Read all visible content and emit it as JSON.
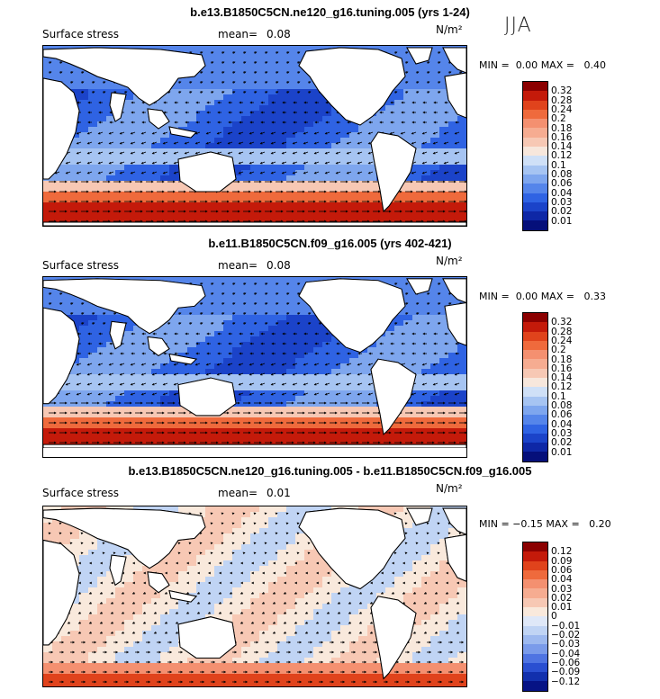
{
  "season": "JJA",
  "colors": {
    "ocean_deep_blue": "#0b2fb8",
    "ocean_mid_blue": "#3a6ae6",
    "ocean_light_blue": "#9fc3f2",
    "near_zero": "#f6f0ea",
    "warm_light": "#f3b29a",
    "warm_strong": "#dd4a28",
    "warm_dark": "#a01208",
    "land": "#ffffff"
  },
  "panels": [
    {
      "title": "b.e13.B1850C5CN.ne120_g16.tuning.005 (yrs 1-24)",
      "variable": "Surface stress",
      "mean_label": "mean=",
      "mean_value": "0.08",
      "units_label": "N/m²",
      "min_label": "MIN =",
      "min_value": "0.00",
      "max_label": "MAX =",
      "max_value": "0.40",
      "colorbar": {
        "levels": [
          "0.32",
          "0.28",
          "0.24",
          "0.2",
          "0.18",
          "0.16",
          "0.14",
          "0.12",
          "0.1",
          "0.08",
          "0.06",
          "0.04",
          "0.03",
          "0.02",
          "0.01"
        ],
        "colors": [
          "#8b0000",
          "#c41a0a",
          "#e0431c",
          "#ef6a3c",
          "#f49070",
          "#f6ac91",
          "#f7c8b4",
          "#f7e7dc",
          "#cfe0f7",
          "#a6c4f2",
          "#7ea6ee",
          "#5585ea",
          "#2f63e3",
          "#1b43c9",
          "#0e27a6",
          "#050f7a"
        ]
      },
      "field": "absolute"
    },
    {
      "title": "b.e11.B1850C5CN.f09_g16.005 (yrs 402-421)",
      "variable": "Surface stress",
      "mean_label": "mean=",
      "mean_value": "0.08",
      "units_label": "N/m²",
      "min_label": "MIN =",
      "min_value": "0.00",
      "max_label": "MAX =",
      "max_value": "0.33",
      "colorbar": {
        "levels": [
          "0.32",
          "0.28",
          "0.24",
          "0.2",
          "0.18",
          "0.16",
          "0.14",
          "0.12",
          "0.1",
          "0.08",
          "0.06",
          "0.04",
          "0.03",
          "0.02",
          "0.01"
        ],
        "colors": [
          "#8b0000",
          "#c41a0a",
          "#e0431c",
          "#ef6a3c",
          "#f49070",
          "#f6ac91",
          "#f7c8b4",
          "#f7e7dc",
          "#cfe0f7",
          "#a6c4f2",
          "#7ea6ee",
          "#5585ea",
          "#2f63e3",
          "#1b43c9",
          "#0e27a6",
          "#050f7a"
        ]
      },
      "field": "absolute"
    },
    {
      "title": "b.e13.B1850C5CN.ne120_g16.tuning.005 - b.e11.B1850C5CN.f09_g16.005",
      "variable": "Surface stress",
      "mean_label": "mean=",
      "mean_value": "0.01",
      "units_label": "N/m²",
      "min_label": "MIN =",
      "min_value": "−0.15",
      "max_label": "MAX =",
      "max_value": "0.20",
      "colorbar": {
        "levels": [
          "0.12",
          "0.09",
          "0.06",
          "0.04",
          "0.03",
          "0.02",
          "0.01",
          "0",
          "−0.01",
          "−0.02",
          "−0.03",
          "−0.04",
          "−0.06",
          "−0.09",
          "−0.12"
        ],
        "colors": [
          "#8b0000",
          "#c41a0a",
          "#e0431c",
          "#ef6a3c",
          "#f49070",
          "#f6ac91",
          "#f7c8b4",
          "#f9e9dc",
          "#dfe8f8",
          "#c0d4f4",
          "#9db9ef",
          "#7a9bea",
          "#4f74e2",
          "#2a4fd1",
          "#1230ad",
          "#061385"
        ]
      },
      "field": "difference"
    }
  ]
}
